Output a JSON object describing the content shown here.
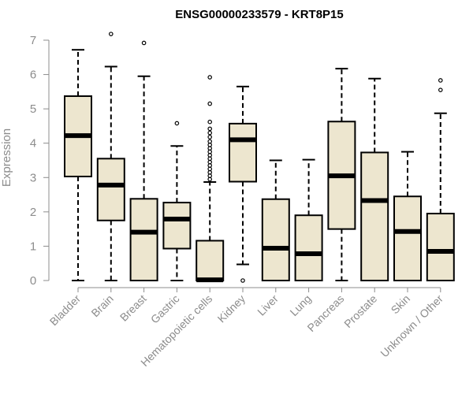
{
  "chart_data": {
    "type": "boxplot",
    "title": "ENSG00000233579 - KRT8P15",
    "xlabel": "",
    "ylabel": "Expression",
    "ylim": [
      0,
      7
    ],
    "yticks": [
      0,
      1,
      2,
      3,
      4,
      5,
      6,
      7
    ],
    "box_color": "#ede6cf",
    "categories": [
      "Bladder",
      "Brain",
      "Breast",
      "Gastric",
      "Hematopoietic cells",
      "Kidney",
      "Liver",
      "Lung",
      "Pancreas",
      "Prostate",
      "Skin",
      "Unknown / Other"
    ],
    "series": [
      {
        "name": "Bladder",
        "min": 0,
        "q1": 3.03,
        "median": 4.22,
        "q3": 5.37,
        "max": 6.72,
        "outliers": []
      },
      {
        "name": "Brain",
        "min": 0,
        "q1": 1.75,
        "median": 2.78,
        "q3": 3.55,
        "max": 6.23,
        "outliers": [
          7.18
        ]
      },
      {
        "name": "Breast",
        "min": 0,
        "q1": 0,
        "median": 1.41,
        "q3": 2.38,
        "max": 5.95,
        "outliers": [
          6.92
        ]
      },
      {
        "name": "Gastric",
        "min": 0,
        "q1": 0.93,
        "median": 1.79,
        "q3": 2.27,
        "max": 3.92,
        "outliers": [
          4.58
        ]
      },
      {
        "name": "Hematopoietic cells",
        "min": 0,
        "q1": 0,
        "median": 0.02,
        "q3": 1.16,
        "max": 2.87,
        "outliers": [
          2.95,
          3.05,
          3.15,
          3.25,
          3.35,
          3.45,
          3.55,
          3.65,
          3.75,
          3.85,
          3.95,
          4.05,
          4.18,
          4.3,
          4.42,
          4.62,
          5.15,
          5.92
        ]
      },
      {
        "name": "Kidney",
        "min": 0.47,
        "q1": 2.88,
        "median": 4.1,
        "q3": 4.57,
        "max": 5.65,
        "outliers": [
          0
        ]
      },
      {
        "name": "Liver",
        "min": 0,
        "q1": 0,
        "median": 0.94,
        "q3": 2.37,
        "max": 3.5,
        "outliers": []
      },
      {
        "name": "Lung",
        "min": 0,
        "q1": 0,
        "median": 0.78,
        "q3": 1.9,
        "max": 3.52,
        "outliers": []
      },
      {
        "name": "Pancreas",
        "min": 0,
        "q1": 1.5,
        "median": 3.05,
        "q3": 4.63,
        "max": 6.17,
        "outliers": []
      },
      {
        "name": "Prostate",
        "min": 0,
        "q1": 0,
        "median": 2.33,
        "q3": 3.73,
        "max": 5.88,
        "outliers": []
      },
      {
        "name": "Skin",
        "min": 0,
        "q1": 0,
        "median": 1.43,
        "q3": 2.45,
        "max": 3.75,
        "outliers": []
      },
      {
        "name": "Unknown / Other",
        "min": 0,
        "q1": 0,
        "median": 0.85,
        "q3": 1.95,
        "max": 4.87,
        "outliers": [
          5.55,
          5.83
        ]
      }
    ]
  }
}
